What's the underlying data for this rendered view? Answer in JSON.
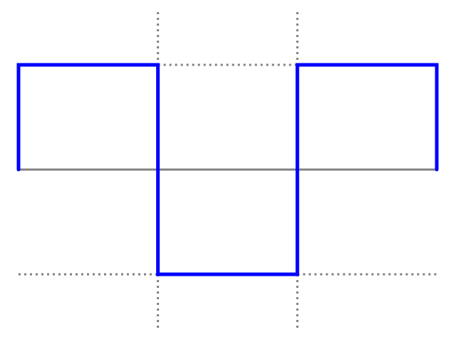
{
  "diagram": {
    "type": "square-wave",
    "levels": [
      1,
      -1,
      1
    ],
    "colors": {
      "wave": "#0000ff",
      "axis": "#808080",
      "guides": "#808080",
      "background": "#ffffff"
    }
  }
}
